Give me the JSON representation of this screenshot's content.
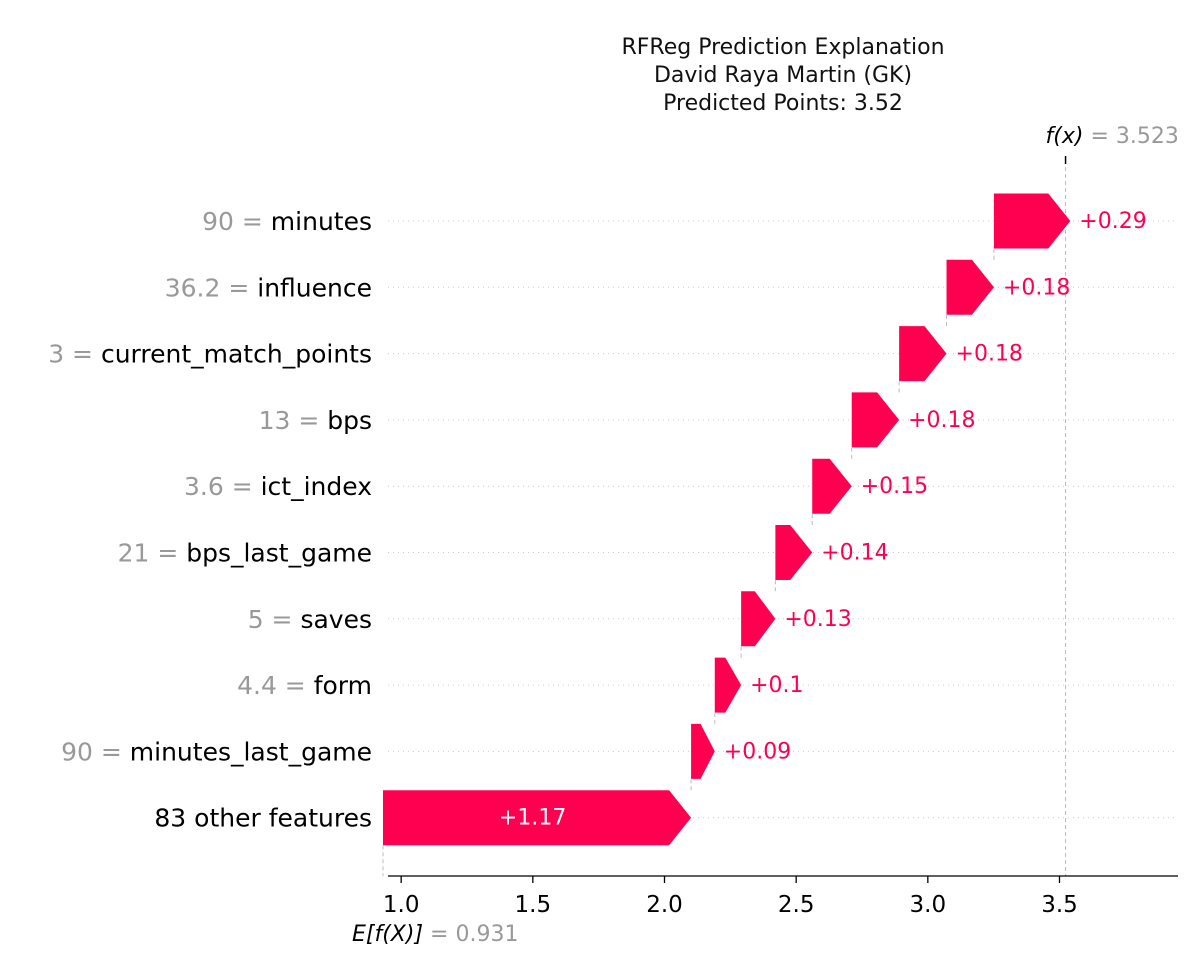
{
  "chart_data": {
    "type": "waterfall",
    "title": [
      "RFReg Prediction Explanation",
      "David Raya Martin (GK)",
      "Predicted Points: 3.52"
    ],
    "base_value": 0.931,
    "base_label": "E[f(X)]",
    "base_value_text": "= 0.931",
    "output_value": 3.523,
    "output_label": "f(x)",
    "output_value_text": "= 3.523",
    "xlim": [
      0.95,
      3.95
    ],
    "x_ticks": [
      1.0,
      1.5,
      2.0,
      2.5,
      3.0,
      3.5
    ],
    "x_tick_labels": [
      "1.0",
      "1.5",
      "2.0",
      "2.5",
      "3.0",
      "3.5"
    ],
    "features": [
      {
        "value": "90",
        "eq": "=",
        "name": "minutes",
        "contribution": 0.29,
        "label": "+0.29"
      },
      {
        "value": "36.2",
        "eq": "=",
        "name": "influence",
        "contribution": 0.18,
        "label": "+0.18"
      },
      {
        "value": "3",
        "eq": "=",
        "name": "current_match_points",
        "contribution": 0.18,
        "label": "+0.18"
      },
      {
        "value": "13",
        "eq": "=",
        "name": "bps",
        "contribution": 0.18,
        "label": "+0.18"
      },
      {
        "value": "3.6",
        "eq": "=",
        "name": "ict_index",
        "contribution": 0.15,
        "label": "+0.15"
      },
      {
        "value": "21",
        "eq": "=",
        "name": "bps_last_game",
        "contribution": 0.14,
        "label": "+0.14"
      },
      {
        "value": "5",
        "eq": "=",
        "name": "saves",
        "contribution": 0.13,
        "label": "+0.13"
      },
      {
        "value": "4.4",
        "eq": "=",
        "name": "form",
        "contribution": 0.1,
        "label": "+0.1"
      },
      {
        "value": "90",
        "eq": "=",
        "name": "minutes_last_game",
        "contribution": 0.09,
        "label": "+0.09"
      },
      {
        "value": "",
        "eq": "",
        "name": "83 other features",
        "contribution": 1.17,
        "label": "+1.17"
      }
    ],
    "colors": {
      "positive": "#ff0051",
      "gray": "#999999"
    }
  }
}
